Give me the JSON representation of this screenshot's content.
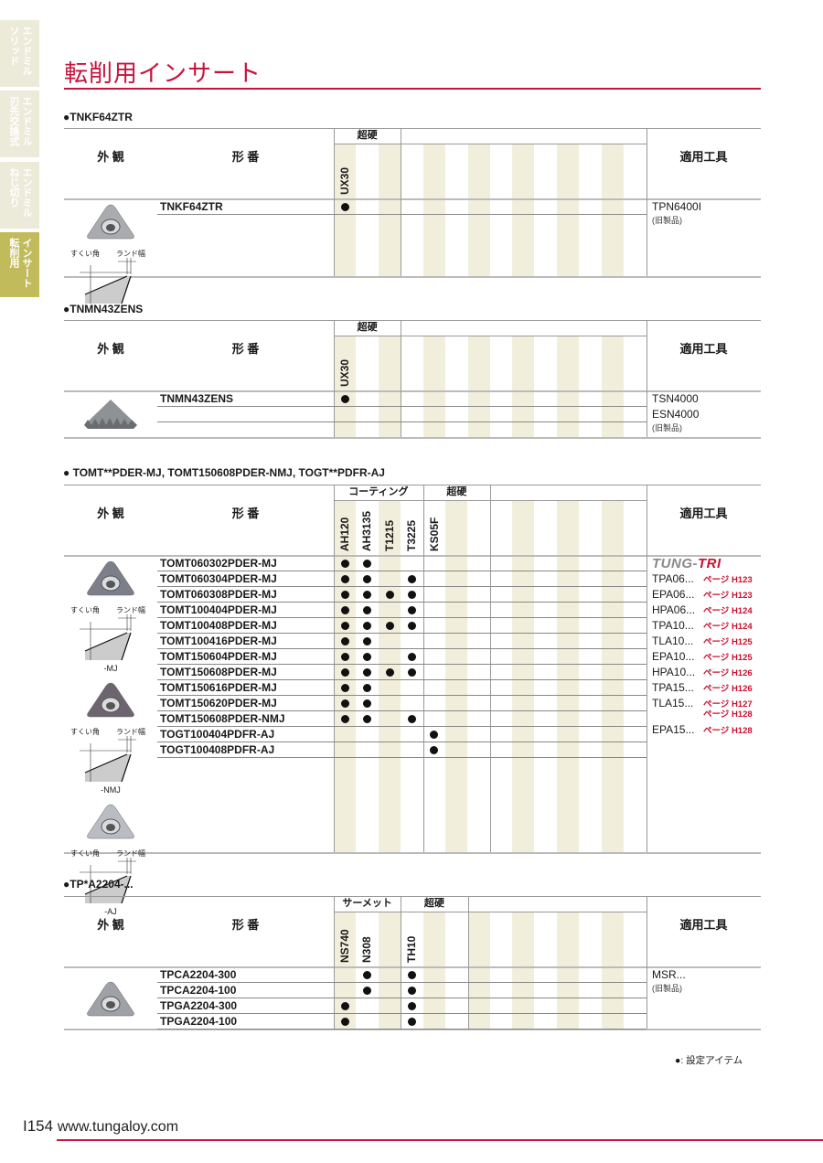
{
  "sidebar": {
    "tabs": [
      {
        "lines": [
          "エンドミル",
          "ソリッド"
        ],
        "active": false
      },
      {
        "lines": [
          "エンドミル",
          "刃先交換式"
        ],
        "active": false
      },
      {
        "lines": [
          "エンドミル",
          "ねじ切り"
        ],
        "active": false
      },
      {
        "lines": [
          "インサート",
          "転削用"
        ],
        "active": true
      }
    ]
  },
  "page_title": "転削用インサート",
  "headers": {
    "appearance": "外 観",
    "part_number": "形 番",
    "tools": "適用工具"
  },
  "diagram_labels": {
    "rake": "すくい角",
    "land": "ランド幅"
  },
  "old_product": "(旧製品)",
  "tables": [
    {
      "title": "●TNKF64ZTR",
      "groups": [
        {
          "label": "超硬",
          "span": 3
        },
        {
          "label": "",
          "span": 11
        }
      ],
      "grades": [
        "UX30",
        "",
        "",
        "",
        "",
        "",
        "",
        "",
        "",
        "",
        "",
        "",
        "",
        ""
      ],
      "rows": [
        {
          "part": "TNKF64ZTR",
          "marks": [
            0
          ]
        }
      ],
      "tools": [
        "TPN6400I"
      ],
      "old": true,
      "pictures": [
        {
          "type": "tnkf",
          "caption": ""
        }
      ]
    },
    {
      "title": "●TNMN43ZENS",
      "groups": [
        {
          "label": "超硬",
          "span": 3
        },
        {
          "label": "",
          "span": 11
        }
      ],
      "grades": [
        "UX30",
        "",
        "",
        "",
        "",
        "",
        "",
        "",
        "",
        "",
        "",
        "",
        "",
        ""
      ],
      "rows": [
        {
          "part": "TNMN43ZENS",
          "marks": [
            0
          ]
        },
        {
          "part": "",
          "marks": []
        }
      ],
      "tools": [
        "TSN4000",
        "ESN4000"
      ],
      "old": true,
      "pictures": [
        {
          "type": "tnmn",
          "caption": ""
        }
      ]
    },
    {
      "title": "● TOMT**PDER-MJ, TOMT150608PDER-NMJ, TOGT**PDFR-AJ",
      "groups": [
        {
          "label": "コーティング",
          "span": 4
        },
        {
          "label": "超硬",
          "span": 3
        },
        {
          "label": "",
          "span": 7
        }
      ],
      "grades": [
        "AH120",
        "AH3135",
        "T1215",
        "T3225",
        "KS05F",
        "",
        "",
        "",
        "",
        "",
        "",
        "",
        "",
        ""
      ],
      "rows": [
        {
          "part": "TOMT060302PDER-MJ",
          "marks": [
            0,
            1
          ]
        },
        {
          "part": "TOMT060304PDER-MJ",
          "marks": [
            0,
            1,
            3
          ]
        },
        {
          "part": "TOMT060308PDER-MJ",
          "marks": [
            0,
            1,
            2,
            3
          ]
        },
        {
          "part": "TOMT100404PDER-MJ",
          "marks": [
            0,
            1,
            3
          ]
        },
        {
          "part": "TOMT100408PDER-MJ",
          "marks": [
            0,
            1,
            2,
            3
          ]
        },
        {
          "part": "TOMT100416PDER-MJ",
          "marks": [
            0,
            1
          ]
        },
        {
          "part": "TOMT150604PDER-MJ",
          "marks": [
            0,
            1,
            3
          ]
        },
        {
          "part": "TOMT150608PDER-MJ",
          "marks": [
            0,
            1,
            2,
            3
          ]
        },
        {
          "part": "TOMT150616PDER-MJ",
          "marks": [
            0,
            1
          ]
        },
        {
          "part": "TOMT150620PDER-MJ",
          "marks": [
            0,
            1
          ]
        },
        {
          "part": "TOMT150608PDER-NMJ",
          "marks": [
            0,
            1,
            3
          ]
        },
        {
          "part": "TOGT100404PDFR-AJ",
          "marks": [
            4
          ]
        },
        {
          "part": "TOGT100408PDFR-AJ",
          "marks": [
            4
          ]
        }
      ],
      "logo": {
        "part1": "TUNG-",
        "part2": "TRI",
        "color1": "#8a8a8a",
        "color2": "#c8102e"
      },
      "tool_refs": [
        {
          "tool": "TPA06...",
          "pages": [
            "ページ H123"
          ]
        },
        {
          "tool": "EPA06...",
          "pages": [
            "ページ H123"
          ]
        },
        {
          "tool": "HPA06...",
          "pages": [
            "ページ H124"
          ]
        },
        {
          "tool": "TPA10...",
          "pages": [
            "ページ H124"
          ]
        },
        {
          "tool": "TLA10...",
          "pages": [
            "ページ H125"
          ]
        },
        {
          "tool": "EPA10...",
          "pages": [
            "ページ H125"
          ]
        },
        {
          "tool": "HPA10...",
          "pages": [
            "ページ H126"
          ]
        },
        {
          "tool": "TPA15...",
          "pages": [
            "ページ H126"
          ]
        },
        {
          "tool": "TLA15...",
          "pages": [
            "ページ H127",
            "ページ H128"
          ]
        },
        {
          "tool": "EPA15...",
          "pages": [
            "ページ H128"
          ]
        }
      ],
      "pictures": [
        {
          "type": "tomt-dark",
          "caption": "-MJ"
        },
        {
          "type": "tomt-purple",
          "caption": "-NMJ"
        },
        {
          "type": "tomt-light",
          "caption": "-AJ"
        }
      ]
    },
    {
      "title": "●TP*A2204-...",
      "groups": [
        {
          "label": "サーメット",
          "span": 3
        },
        {
          "label": "超硬",
          "span": 3
        },
        {
          "label": "",
          "span": 8
        }
      ],
      "grades": [
        "NS740",
        "N308",
        "",
        "TH10",
        "",
        "",
        "",
        "",
        "",
        "",
        "",
        "",
        "",
        ""
      ],
      "rows": [
        {
          "part": "TPCA2204-300",
          "marks": [
            1,
            3
          ]
        },
        {
          "part": "TPCA2204-100",
          "marks": [
            1,
            3
          ]
        },
        {
          "part": "TPGA2204-300",
          "marks": [
            0,
            3
          ]
        },
        {
          "part": "TPGA2204-100",
          "marks": [
            0,
            3
          ]
        }
      ],
      "tools": [
        "MSR..."
      ],
      "old": true,
      "pictures": [
        {
          "type": "tpca",
          "caption": ""
        }
      ]
    }
  ],
  "legend": "●: 設定アイテム",
  "footer": {
    "page": "I154",
    "url": "www.tungaloy.com"
  },
  "colors": {
    "accent": "#c8143c",
    "shade": "#f1efdc",
    "tab": "#ecebd9",
    "tab_active": "#c2bb5c"
  }
}
